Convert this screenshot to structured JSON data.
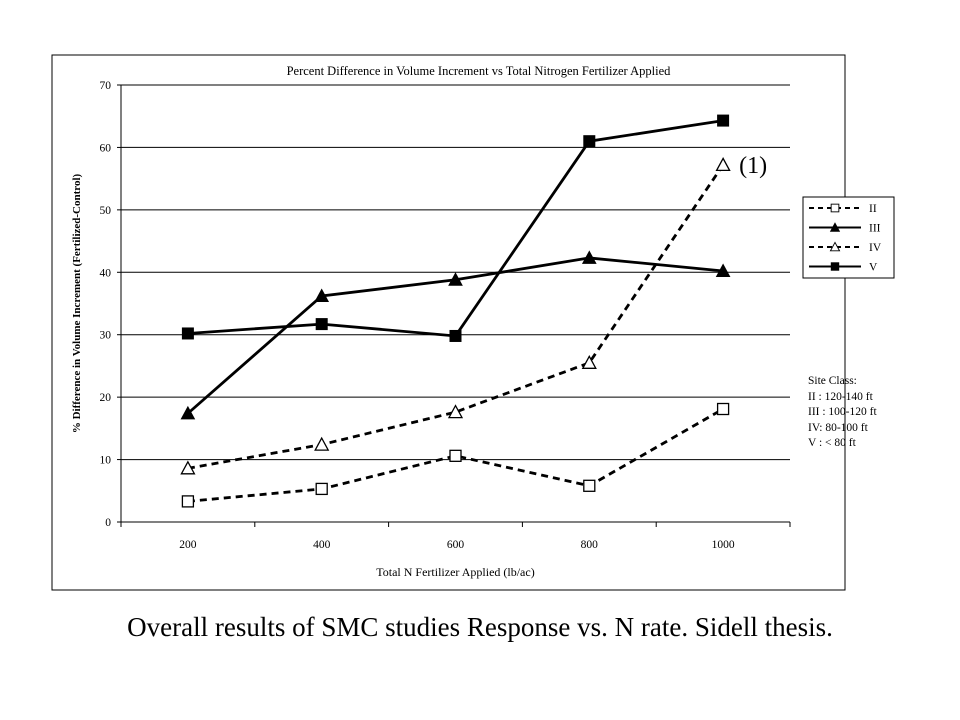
{
  "chart_data": {
    "type": "line",
    "title": "Percent Difference in Volume Increment vs Total Nitrogen Fertilizer Applied",
    "xlabel": "Total N Fertilizer Applied (lb/ac)",
    "ylabel": "% Difference in Volume Increment (Fertilized-Control)",
    "x": [
      200,
      400,
      600,
      800,
      1000
    ],
    "categories": [
      "200",
      "400",
      "600",
      "800",
      "1000"
    ],
    "ylim": [
      0,
      70
    ],
    "yticks": [
      "0",
      "10",
      "20",
      "30",
      "40",
      "50",
      "60",
      "70"
    ],
    "grid": "horizontal",
    "legend_position": "right",
    "series": [
      {
        "name": "II",
        "values": [
          3.3,
          5.3,
          10.6,
          5.8,
          18.1
        ],
        "marker": "square-open",
        "line": "dashed"
      },
      {
        "name": "III",
        "values": [
          17.4,
          36.2,
          38.8,
          42.3,
          40.2
        ],
        "marker": "triangle-filled",
        "line": "solid"
      },
      {
        "name": "IV",
        "values": [
          8.6,
          12.4,
          17.6,
          25.5,
          57.2
        ],
        "marker": "triangle-open",
        "line": "dashed"
      },
      {
        "name": "V",
        "values": [
          30.2,
          31.7,
          29.8,
          61.0,
          64.3
        ],
        "marker": "square-filled",
        "line": "solid"
      }
    ],
    "annotations": [
      {
        "text": "(1)",
        "x": 1000,
        "y": 57.2
      }
    ]
  },
  "site_class": {
    "title": "Site Class:",
    "lines": [
      "II : 120-140 ft",
      "III : 100-120 ft",
      "IV: 80-100 ft",
      "V : < 80 ft"
    ]
  },
  "caption": "Overall results of SMC studies Response vs. N rate. Sidell thesis."
}
